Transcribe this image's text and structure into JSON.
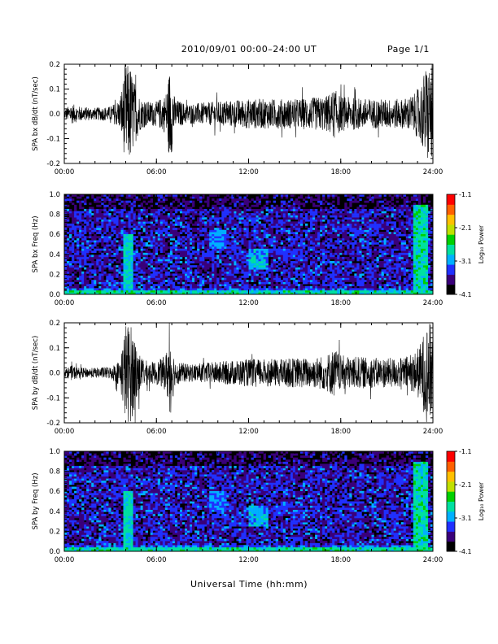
{
  "page": {
    "title": "2010/09/01   00:00–24:00 UT",
    "page_label": "Page 1/1",
    "xlabel": "Universal Time (hh:mm)"
  },
  "colorbar": {
    "tick_labels": [
      "-1.1",
      "-2.1",
      "-3.1",
      "-4.1"
    ],
    "label": "Log₁₀ Power",
    "colors": [
      "#000000",
      "#3a007a",
      "#2030ff",
      "#00b0ff",
      "#00e0a0",
      "#00d000",
      "#c0e000",
      "#ffc000",
      "#ff6000",
      "#ff0000"
    ]
  },
  "chart_data": [
    {
      "type": "line",
      "title": "",
      "ylabel": "SPA bx dB/dt (nT/sec)",
      "xlabel": "",
      "xlim": [
        0,
        24
      ],
      "ylim": [
        -0.2,
        0.2
      ],
      "x_tick_labels": [
        "00:00",
        "06:00",
        "12:00",
        "18:00",
        "24:00"
      ],
      "y_tick_labels": [
        "-0.2",
        "-0.1",
        "0.0",
        "0.1",
        "0.2"
      ],
      "series": [
        {
          "envelope_hours": [
            0,
            0.5,
            1,
            2,
            3,
            3.6,
            4.0,
            4.3,
            4.6,
            5,
            5.5,
            6,
            6.6,
            6.9,
            7.2,
            8,
            9,
            10,
            11,
            12,
            13,
            14,
            15,
            16,
            17,
            17.6,
            18,
            19,
            20,
            21,
            22,
            22.8,
            23.2,
            23.6,
            24
          ],
          "envelope_amplitude": [
            0.02,
            0.04,
            0.03,
            0.025,
            0.03,
            0.06,
            0.2,
            0.2,
            0.12,
            0.06,
            0.05,
            0.05,
            0.08,
            0.2,
            0.06,
            0.04,
            0.045,
            0.05,
            0.055,
            0.06,
            0.06,
            0.06,
            0.06,
            0.065,
            0.07,
            0.1,
            0.07,
            0.065,
            0.06,
            0.06,
            0.06,
            0.08,
            0.12,
            0.2,
            0.2
          ]
        }
      ]
    },
    {
      "type": "heatmap",
      "title": "",
      "ylabel": "SPA bx Freq (Hz)",
      "xlabel": "",
      "xlim": [
        0,
        24
      ],
      "ylim": [
        0.0,
        1.0
      ],
      "x_tick_labels": [
        "00:00",
        "06:00",
        "12:00",
        "18:00",
        "24:00"
      ],
      "y_tick_labels": [
        "0.0",
        "0.2",
        "0.4",
        "0.6",
        "0.8",
        "1.0"
      ],
      "color_scale": "log10 power",
      "zlim": [
        -4.1,
        -1.1
      ],
      "features": [
        {
          "time_hours": [
            3.9,
            4.5
          ],
          "freq_hz": [
            0.0,
            0.6
          ],
          "log_power": -2.6
        },
        {
          "time_hours": [
            9.5,
            10.5
          ],
          "freq_hz": [
            0.45,
            0.65
          ],
          "log_power": -3.0
        },
        {
          "time_hours": [
            12.0,
            13.2
          ],
          "freq_hz": [
            0.25,
            0.45
          ],
          "log_power": -2.8
        },
        {
          "time_hours": [
            13.0,
            15.5
          ],
          "freq_hz": [
            0.38,
            0.45
          ],
          "log_power": -3.3
        },
        {
          "time_hours": [
            0.0,
            24.0
          ],
          "freq_hz": [
            0.0,
            0.05
          ],
          "log_power": -2.5
        },
        {
          "time_hours": [
            22.8,
            23.7
          ],
          "freq_hz": [
            0.0,
            0.9
          ],
          "log_power": -2.5
        }
      ]
    },
    {
      "type": "line",
      "title": "",
      "ylabel": "SPA by dB/dt (nT/sec)",
      "xlabel": "",
      "xlim": [
        0,
        24
      ],
      "ylim": [
        -0.2,
        0.2
      ],
      "x_tick_labels": [
        "00:00",
        "06:00",
        "12:00",
        "18:00",
        "24:00"
      ],
      "y_tick_labels": [
        "-0.2",
        "-0.1",
        "0.0",
        "0.1",
        "0.2"
      ],
      "series": [
        {
          "envelope_hours": [
            0,
            0.5,
            1,
            2,
            3,
            3.6,
            4.0,
            4.3,
            4.6,
            5,
            5.5,
            6,
            6.6,
            6.9,
            7.2,
            8,
            9,
            10,
            11,
            12,
            13,
            14,
            15,
            16,
            17,
            17.6,
            18,
            19,
            20,
            21,
            22,
            22.8,
            23.2,
            23.6,
            24
          ],
          "envelope_amplitude": [
            0.015,
            0.03,
            0.02,
            0.02,
            0.025,
            0.05,
            0.2,
            0.2,
            0.15,
            0.06,
            0.045,
            0.045,
            0.07,
            0.18,
            0.05,
            0.035,
            0.04,
            0.045,
            0.05,
            0.055,
            0.055,
            0.055,
            0.06,
            0.06,
            0.07,
            0.1,
            0.07,
            0.065,
            0.06,
            0.06,
            0.06,
            0.08,
            0.12,
            0.2,
            0.2
          ]
        }
      ]
    },
    {
      "type": "heatmap",
      "title": "",
      "ylabel": "SPA by Freq (Hz)",
      "xlabel": "",
      "xlim": [
        0,
        24
      ],
      "ylim": [
        0.0,
        1.0
      ],
      "x_tick_labels": [
        "00:00",
        "06:00",
        "12:00",
        "18:00",
        "24:00"
      ],
      "y_tick_labels": [
        "0.0",
        "0.2",
        "0.4",
        "0.6",
        "0.8",
        "1.0"
      ],
      "color_scale": "log10 power",
      "zlim": [
        -4.1,
        -1.1
      ],
      "features": [
        {
          "time_hours": [
            3.9,
            4.5
          ],
          "freq_hz": [
            0.0,
            0.6
          ],
          "log_power": -2.6
        },
        {
          "time_hours": [
            9.5,
            10.5
          ],
          "freq_hz": [
            0.4,
            0.6
          ],
          "log_power": -3.0
        },
        {
          "time_hours": [
            12.0,
            13.2
          ],
          "freq_hz": [
            0.25,
            0.45
          ],
          "log_power": -2.8
        },
        {
          "time_hours": [
            13.0,
            15.5
          ],
          "freq_hz": [
            0.38,
            0.45
          ],
          "log_power": -3.3
        },
        {
          "time_hours": [
            0.0,
            24.0
          ],
          "freq_hz": [
            0.0,
            0.05
          ],
          "log_power": -2.5
        },
        {
          "time_hours": [
            22.8,
            23.7
          ],
          "freq_hz": [
            0.0,
            0.9
          ],
          "log_power": -2.5
        }
      ]
    }
  ]
}
